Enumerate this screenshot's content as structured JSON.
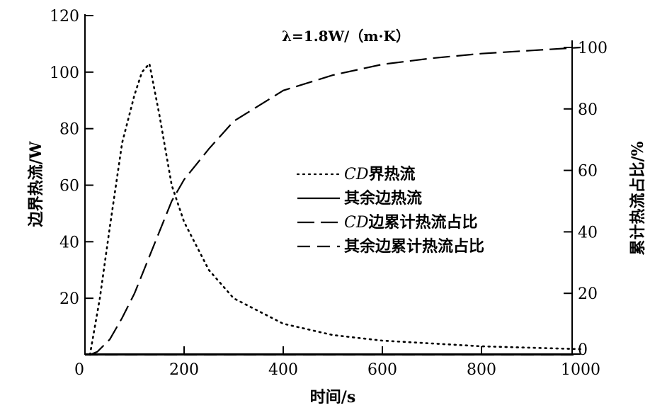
{
  "chart_data": {
    "type": "line",
    "annotation": "λ=1.8W/（m·K）",
    "xlabel": "时间/s",
    "ylabel_left": "边界热流/W",
    "ylabel_right": "累计热流占比/%",
    "xlim": [
      0,
      1000
    ],
    "ylim_left": [
      0,
      120
    ],
    "ylim_right": [
      0,
      100
    ],
    "x_ticks": [
      "0",
      "200",
      "400",
      "600",
      "800",
      "1000"
    ],
    "y_left_ticks": [
      "20",
      "40",
      "60",
      "80",
      "100",
      "120"
    ],
    "y_right_ticks": [
      "0",
      "20",
      "40",
      "60",
      "80",
      "100"
    ],
    "legend_position": "center",
    "series": [
      {
        "name_prefix": "CD",
        "name": "界热流",
        "axis": "left",
        "style": "dotted",
        "x": [
          10,
          30,
          50,
          75,
          100,
          115,
          130,
          150,
          175,
          200,
          250,
          300,
          400,
          500,
          600,
          800,
          1000
        ],
        "y": [
          0,
          20,
          45,
          75,
          92,
          100,
          103,
          85,
          60,
          47,
          30,
          20,
          11,
          7,
          5,
          3,
          2
        ]
      },
      {
        "name_prefix": "",
        "name": "其余边热流",
        "axis": "left",
        "style": "solid",
        "x": [
          0,
          1000
        ],
        "y": [
          0,
          0
        ]
      },
      {
        "name_prefix": "CD",
        "name": "边累计热流占比",
        "axis": "right",
        "style": "longdash",
        "x": [
          10,
          25,
          50,
          75,
          100,
          125,
          150,
          175,
          200,
          250,
          300,
          400,
          500,
          600,
          700,
          800,
          900,
          1000
        ],
        "y": [
          0,
          1,
          5,
          12,
          20,
          30,
          40,
          50,
          57,
          67,
          76,
          86,
          91,
          94.5,
          96.5,
          98,
          99,
          100
        ]
      },
      {
        "name_prefix": "",
        "name": "其余边累计热流占比",
        "axis": "right",
        "style": "dash",
        "x": [
          0,
          1000
        ],
        "y": [
          0,
          0
        ]
      }
    ]
  }
}
